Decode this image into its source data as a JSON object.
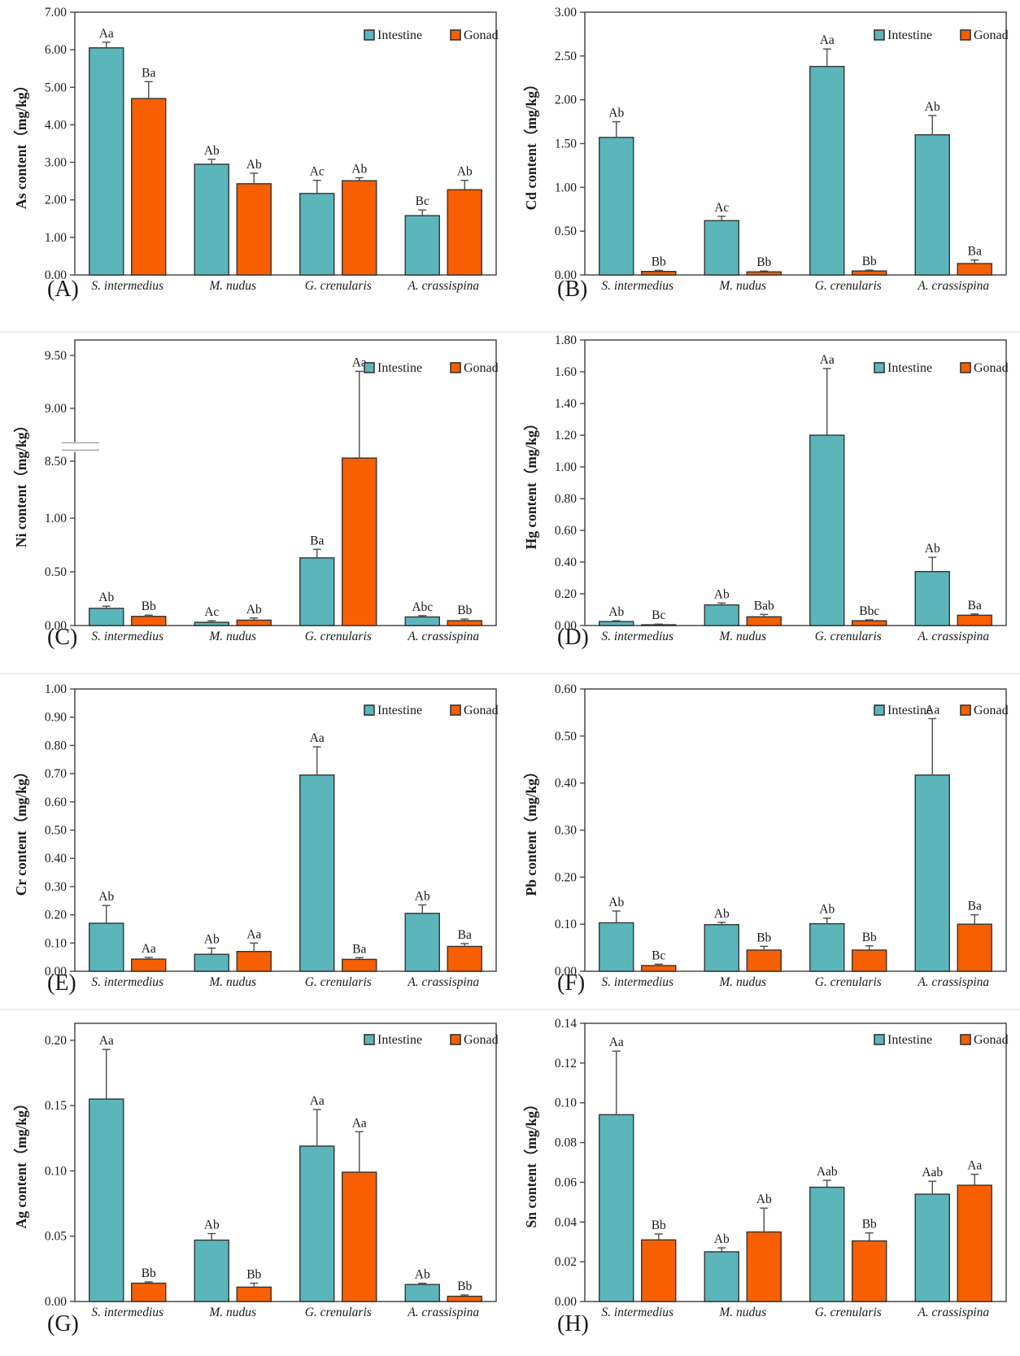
{
  "figure": {
    "species": [
      "S. intermedius",
      "M. nudus",
      "G. crenularis",
      "A. crassispina"
    ],
    "legend": {
      "intestine": "Intestine",
      "gonad": "Gonad"
    },
    "colors": {
      "intestine": "#5BB6BC",
      "gonad": "#F85F00",
      "bar_outline": "#333333",
      "frame": "#4a4a4a",
      "error_bar": "#4d4d4d",
      "text": "#1a1a1a",
      "break_mark": "#9a9a9a"
    }
  },
  "chart_data": [
    {
      "type": "bar",
      "letter": "(A)",
      "ylabel": "As content（mg/kg）",
      "categories": [
        "S. intermedius",
        "M. nudus",
        "G. crenularis",
        "A. crassispina"
      ],
      "ylim": [
        0,
        7.0
      ],
      "yticks": [
        0,
        1.0,
        2.0,
        3.0,
        4.0,
        5.0,
        6.0,
        7.0
      ],
      "tick_decimals": 2,
      "grid": false,
      "legend_position": "top-right",
      "series": [
        {
          "name": "Intestine",
          "values": [
            6.05,
            2.95,
            2.17,
            1.58
          ],
          "errors": [
            0.15,
            0.13,
            0.35,
            0.15
          ],
          "sig_labels": [
            "Aa",
            "Ab",
            "Ac",
            "Bc"
          ]
        },
        {
          "name": "Gonad",
          "values": [
            4.7,
            2.43,
            2.51,
            2.27
          ],
          "errors": [
            0.45,
            0.28,
            0.08,
            0.25
          ],
          "sig_labels": [
            "Ba",
            "Ab",
            "Ab",
            "Ab"
          ]
        }
      ]
    },
    {
      "type": "bar",
      "letter": "(B)",
      "ylabel": "Cd content（mg/kg）",
      "categories": [
        "S. intermedius",
        "M. nudus",
        "G. crenularis",
        "A. crassispina"
      ],
      "ylim": [
        0,
        3.0
      ],
      "yticks": [
        0,
        0.5,
        1.0,
        1.5,
        2.0,
        2.5,
        3.0
      ],
      "tick_decimals": 2,
      "grid": false,
      "legend_position": "top-right",
      "series": [
        {
          "name": "Intestine",
          "values": [
            1.57,
            0.62,
            2.38,
            1.6
          ],
          "errors": [
            0.18,
            0.05,
            0.2,
            0.22
          ],
          "sig_labels": [
            "Ab",
            "Ac",
            "Aa",
            "Ab"
          ]
        },
        {
          "name": "Gonad",
          "values": [
            0.04,
            0.035,
            0.045,
            0.13
          ],
          "errors": [
            0.012,
            0.01,
            0.01,
            0.04
          ],
          "sig_labels": [
            "Bb",
            "Bb",
            "Bb",
            "Ba"
          ]
        }
      ]
    },
    {
      "type": "bar",
      "letter": "(C)",
      "ylabel": "Ni content（mg/kg）",
      "categories": [
        "S. intermedius",
        "M. nudus",
        "G. crenularis",
        "A. crassispina"
      ],
      "ylim": [
        0,
        9.5
      ],
      "tick_decimals": 2,
      "axis_break": {
        "lower_ticks": [
          0,
          0.5,
          1.0
        ],
        "upper_ticks": [
          8.5,
          9.0,
          9.5
        ]
      },
      "grid": false,
      "legend_position": "top-right",
      "series": [
        {
          "name": "Intestine",
          "values": [
            0.16,
            0.03,
            0.63,
            0.08
          ],
          "errors": [
            0.02,
            0.015,
            0.08,
            0.012
          ],
          "sig_labels": [
            "Ab",
            "Ac",
            "Ba",
            "Abc"
          ]
        },
        {
          "name": "Gonad",
          "values": [
            0.085,
            0.05,
            8.53,
            0.045
          ],
          "errors": [
            0.012,
            0.02,
            0.82,
            0.015
          ],
          "sig_labels": [
            "Bb",
            "Ab",
            "Aa",
            "Bb"
          ]
        }
      ]
    },
    {
      "type": "bar",
      "letter": "(D)",
      "ylabel": "Hg content（mg/kg）",
      "categories": [
        "S. intermedius",
        "M. nudus",
        "G. crenularis",
        "A. crassispina"
      ],
      "ylim": [
        0,
        1.8
      ],
      "yticks": [
        0,
        0.2,
        0.4,
        0.6,
        0.8,
        1.0,
        1.2,
        1.4,
        1.6,
        1.8
      ],
      "tick_decimals": 2,
      "grid": false,
      "legend_position": "top-right",
      "series": [
        {
          "name": "Intestine",
          "values": [
            0.025,
            0.13,
            1.2,
            0.34
          ],
          "errors": [
            0.005,
            0.012,
            0.42,
            0.09
          ],
          "sig_labels": [
            "Ab",
            "Ab",
            "Aa",
            "Ab"
          ]
        },
        {
          "name": "Gonad",
          "values": [
            0.005,
            0.055,
            0.03,
            0.065
          ],
          "errors": [
            0.004,
            0.015,
            0.006,
            0.008
          ],
          "sig_labels": [
            "Bc",
            "Bab",
            "Bbc",
            "Ba"
          ]
        }
      ]
    },
    {
      "type": "bar",
      "letter": "(E)",
      "ylabel": "Cr content（mg/kg）",
      "categories": [
        "S. intermedius",
        "M. nudus",
        "G. crenularis",
        "A. crassispina"
      ],
      "ylim": [
        0,
        1.0
      ],
      "yticks": [
        0,
        0.1,
        0.2,
        0.3,
        0.4,
        0.5,
        0.6,
        0.7,
        0.8,
        0.9,
        1.0
      ],
      "tick_decimals": 2,
      "grid": false,
      "legend_position": "top-right",
      "series": [
        {
          "name": "Intestine",
          "values": [
            0.17,
            0.06,
            0.695,
            0.205
          ],
          "errors": [
            0.063,
            0.022,
            0.1,
            0.03
          ],
          "sig_labels": [
            "Ab",
            "Ab",
            "Aa",
            "Ab"
          ]
        },
        {
          "name": "Gonad",
          "values": [
            0.043,
            0.07,
            0.042,
            0.088
          ],
          "errors": [
            0.006,
            0.03,
            0.006,
            0.01
          ],
          "sig_labels": [
            "Aa",
            "Aa",
            "Ba",
            "Ba"
          ]
        }
      ]
    },
    {
      "type": "bar",
      "letter": "(F)",
      "ylabel": "Pb content（mg/kg）",
      "categories": [
        "S. intermedius",
        "M. nudus",
        "G. crenularis",
        "A. crassispina"
      ],
      "ylim": [
        0,
        0.6
      ],
      "yticks": [
        0,
        0.1,
        0.2,
        0.3,
        0.4,
        0.5,
        0.6
      ],
      "tick_decimals": 2,
      "grid": false,
      "legend_position": "top-right",
      "series": [
        {
          "name": "Intestine",
          "values": [
            0.103,
            0.099,
            0.101,
            0.417
          ],
          "errors": [
            0.025,
            0.005,
            0.012,
            0.12
          ],
          "sig_labels": [
            "Ab",
            "Ab",
            "Ab",
            "Aa"
          ]
        },
        {
          "name": "Gonad",
          "values": [
            0.012,
            0.045,
            0.045,
            0.1
          ],
          "errors": [
            0.003,
            0.008,
            0.009,
            0.02
          ],
          "sig_labels": [
            "Bc",
            "Bb",
            "Bb",
            "Ba"
          ]
        }
      ]
    },
    {
      "type": "bar",
      "letter": "(G)",
      "ylabel": "Ag content（mg/kg）",
      "categories": [
        "S. intermedius",
        "M. nudus",
        "G. crenularis",
        "A. crassispina"
      ],
      "ylim": [
        0,
        0.213
      ],
      "yticks": [
        0,
        0.05,
        0.1,
        0.15,
        0.2
      ],
      "tick_decimals": 2,
      "grid": false,
      "legend_position": "top-right",
      "series": [
        {
          "name": "Intestine",
          "values": [
            0.155,
            0.047,
            0.119,
            0.013
          ],
          "errors": [
            0.038,
            0.005,
            0.028,
            0.001
          ],
          "sig_labels": [
            "Aa",
            "Ab",
            "Aa",
            "Ab"
          ]
        },
        {
          "name": "Gonad",
          "values": [
            0.014,
            0.011,
            0.099,
            0.004
          ],
          "errors": [
            0.001,
            0.003,
            0.031,
            0.001
          ],
          "sig_labels": [
            "Bb",
            "Bb",
            "Aa",
            "Bb"
          ]
        }
      ]
    },
    {
      "type": "bar",
      "letter": "(H)",
      "ylabel": "Sn content（mg/kg）",
      "categories": [
        "S. intermedius",
        "M. nudus",
        "G. crenularis",
        "A. crassispina"
      ],
      "ylim": [
        0,
        0.14
      ],
      "yticks": [
        0,
        0.02,
        0.04,
        0.06,
        0.08,
        0.1,
        0.12,
        0.14
      ],
      "tick_decimals": 2,
      "grid": false,
      "legend_position": "top-right",
      "series": [
        {
          "name": "Intestine",
          "values": [
            0.094,
            0.025,
            0.0575,
            0.054
          ],
          "errors": [
            0.032,
            0.002,
            0.0035,
            0.0065
          ],
          "sig_labels": [
            "Aa",
            "Ab",
            "Aab",
            "Aab"
          ]
        },
        {
          "name": "Gonad",
          "values": [
            0.031,
            0.035,
            0.0305,
            0.0585
          ],
          "errors": [
            0.003,
            0.012,
            0.004,
            0.0055
          ],
          "sig_labels": [
            "Bb",
            "Ab",
            "Bb",
            "Aa"
          ]
        }
      ]
    }
  ]
}
